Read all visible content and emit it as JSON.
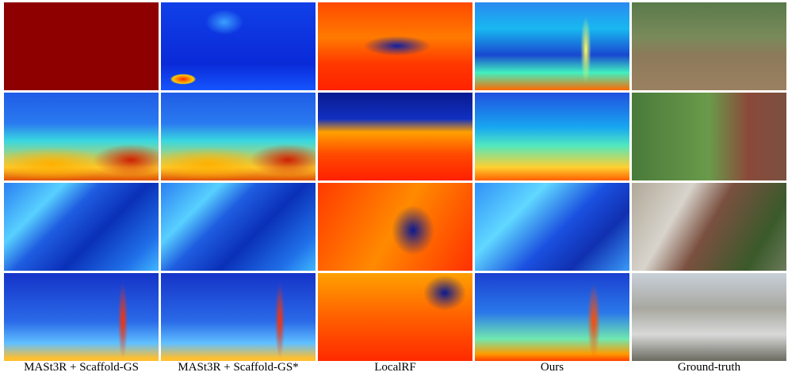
{
  "columns": [
    "MASt3R + Scaffold-GS",
    "MASt3R + Scaffold-GS*",
    "LocalRF",
    "Ours",
    "Ground-truth"
  ]
}
